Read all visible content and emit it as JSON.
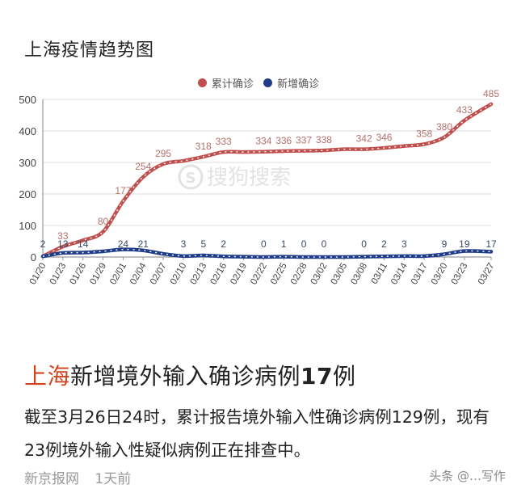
{
  "header": {
    "title": "上海疫情趋势图"
  },
  "legend": [
    {
      "label": "累计确诊",
      "color": "#c0504d"
    },
    {
      "label": "新增确诊",
      "color": "#1f3c88"
    }
  ],
  "watermark_chart": "搜狗搜索",
  "chart_data": {
    "type": "line",
    "title": "上海疫情趋势图",
    "xlabel": "",
    "ylabel": "",
    "ylim": [
      0,
      500
    ],
    "yticks": [
      0,
      100,
      200,
      300,
      400,
      500
    ],
    "grid": true,
    "legend_position": "top",
    "categories": [
      "01/20",
      "01/23",
      "01/26",
      "01/29",
      "02/01",
      "02/04",
      "02/07",
      "02/10",
      "02/13",
      "02/16",
      "02/19",
      "02/22",
      "02/25",
      "02/28",
      "03/02",
      "03/05",
      "03/08",
      "03/11",
      "03/14",
      "03/17",
      "03/20",
      "03/23",
      "03/27"
    ],
    "series": [
      {
        "name": "累计确诊",
        "color": "#c0504d",
        "labels": [
          {
            "x": "01/23",
            "value": 33
          },
          {
            "x": "01/29",
            "value": 80
          },
          {
            "x": "02/01",
            "value": 177
          },
          {
            "x": "02/04",
            "value": 254
          },
          {
            "x": "02/07",
            "value": 295
          },
          {
            "x": "02/13",
            "value": 318
          },
          {
            "x": "02/16",
            "value": 333
          },
          {
            "x": "02/22",
            "value": 334
          },
          {
            "x": "02/25",
            "value": 336
          },
          {
            "x": "02/28",
            "value": 337
          },
          {
            "x": "03/02",
            "value": 338
          },
          {
            "x": "03/08",
            "value": 342
          },
          {
            "x": "03/11",
            "value": 346
          },
          {
            "x": "03/17",
            "value": 358
          },
          {
            "x": "03/20",
            "value": 380
          },
          {
            "x": "03/23",
            "value": 433
          },
          {
            "x": "03/27",
            "value": 485
          }
        ],
        "values": [
          2,
          33,
          53,
          80,
          177,
          254,
          295,
          305,
          318,
          333,
          333,
          334,
          336,
          337,
          338,
          342,
          342,
          346,
          352,
          358,
          380,
          433,
          485
        ]
      },
      {
        "name": "新增确诊",
        "color": "#1f3c88",
        "labels": [
          {
            "x": "01/20",
            "value": 2
          },
          {
            "x": "01/23",
            "value": 13
          },
          {
            "x": "01/26",
            "value": 14
          },
          {
            "x": "02/01",
            "value": 24
          },
          {
            "x": "02/04",
            "value": 21
          },
          {
            "x": "02/10",
            "value": 3
          },
          {
            "x": "02/13",
            "value": 5
          },
          {
            "x": "02/16",
            "value": 2
          },
          {
            "x": "02/22",
            "value": 0
          },
          {
            "x": "02/25",
            "value": 1
          },
          {
            "x": "02/28",
            "value": 0
          },
          {
            "x": "03/02",
            "value": 0
          },
          {
            "x": "03/08",
            "value": 0
          },
          {
            "x": "03/11",
            "value": 2
          },
          {
            "x": "03/14",
            "value": 3
          },
          {
            "x": "03/20",
            "value": 9
          },
          {
            "x": "03/23",
            "value": 19
          },
          {
            "x": "03/27",
            "value": 17
          }
        ],
        "values": [
          2,
          13,
          14,
          18,
          24,
          21,
          10,
          3,
          5,
          2,
          1,
          0,
          1,
          0,
          0,
          0,
          1,
          2,
          3,
          3,
          9,
          19,
          17
        ]
      }
    ]
  },
  "article": {
    "headline_highlight": "上海",
    "headline_rest": "新增境外输入确诊病例",
    "headline_number": "17",
    "headline_suffix": "例",
    "body": "截至3月26日24时，累计报告境外输入性确诊病例129例，现有23例境外输入性疑似病例正在排查中。",
    "source": "新京报网",
    "time": "1天前",
    "watermark": "头条 @…写作"
  }
}
